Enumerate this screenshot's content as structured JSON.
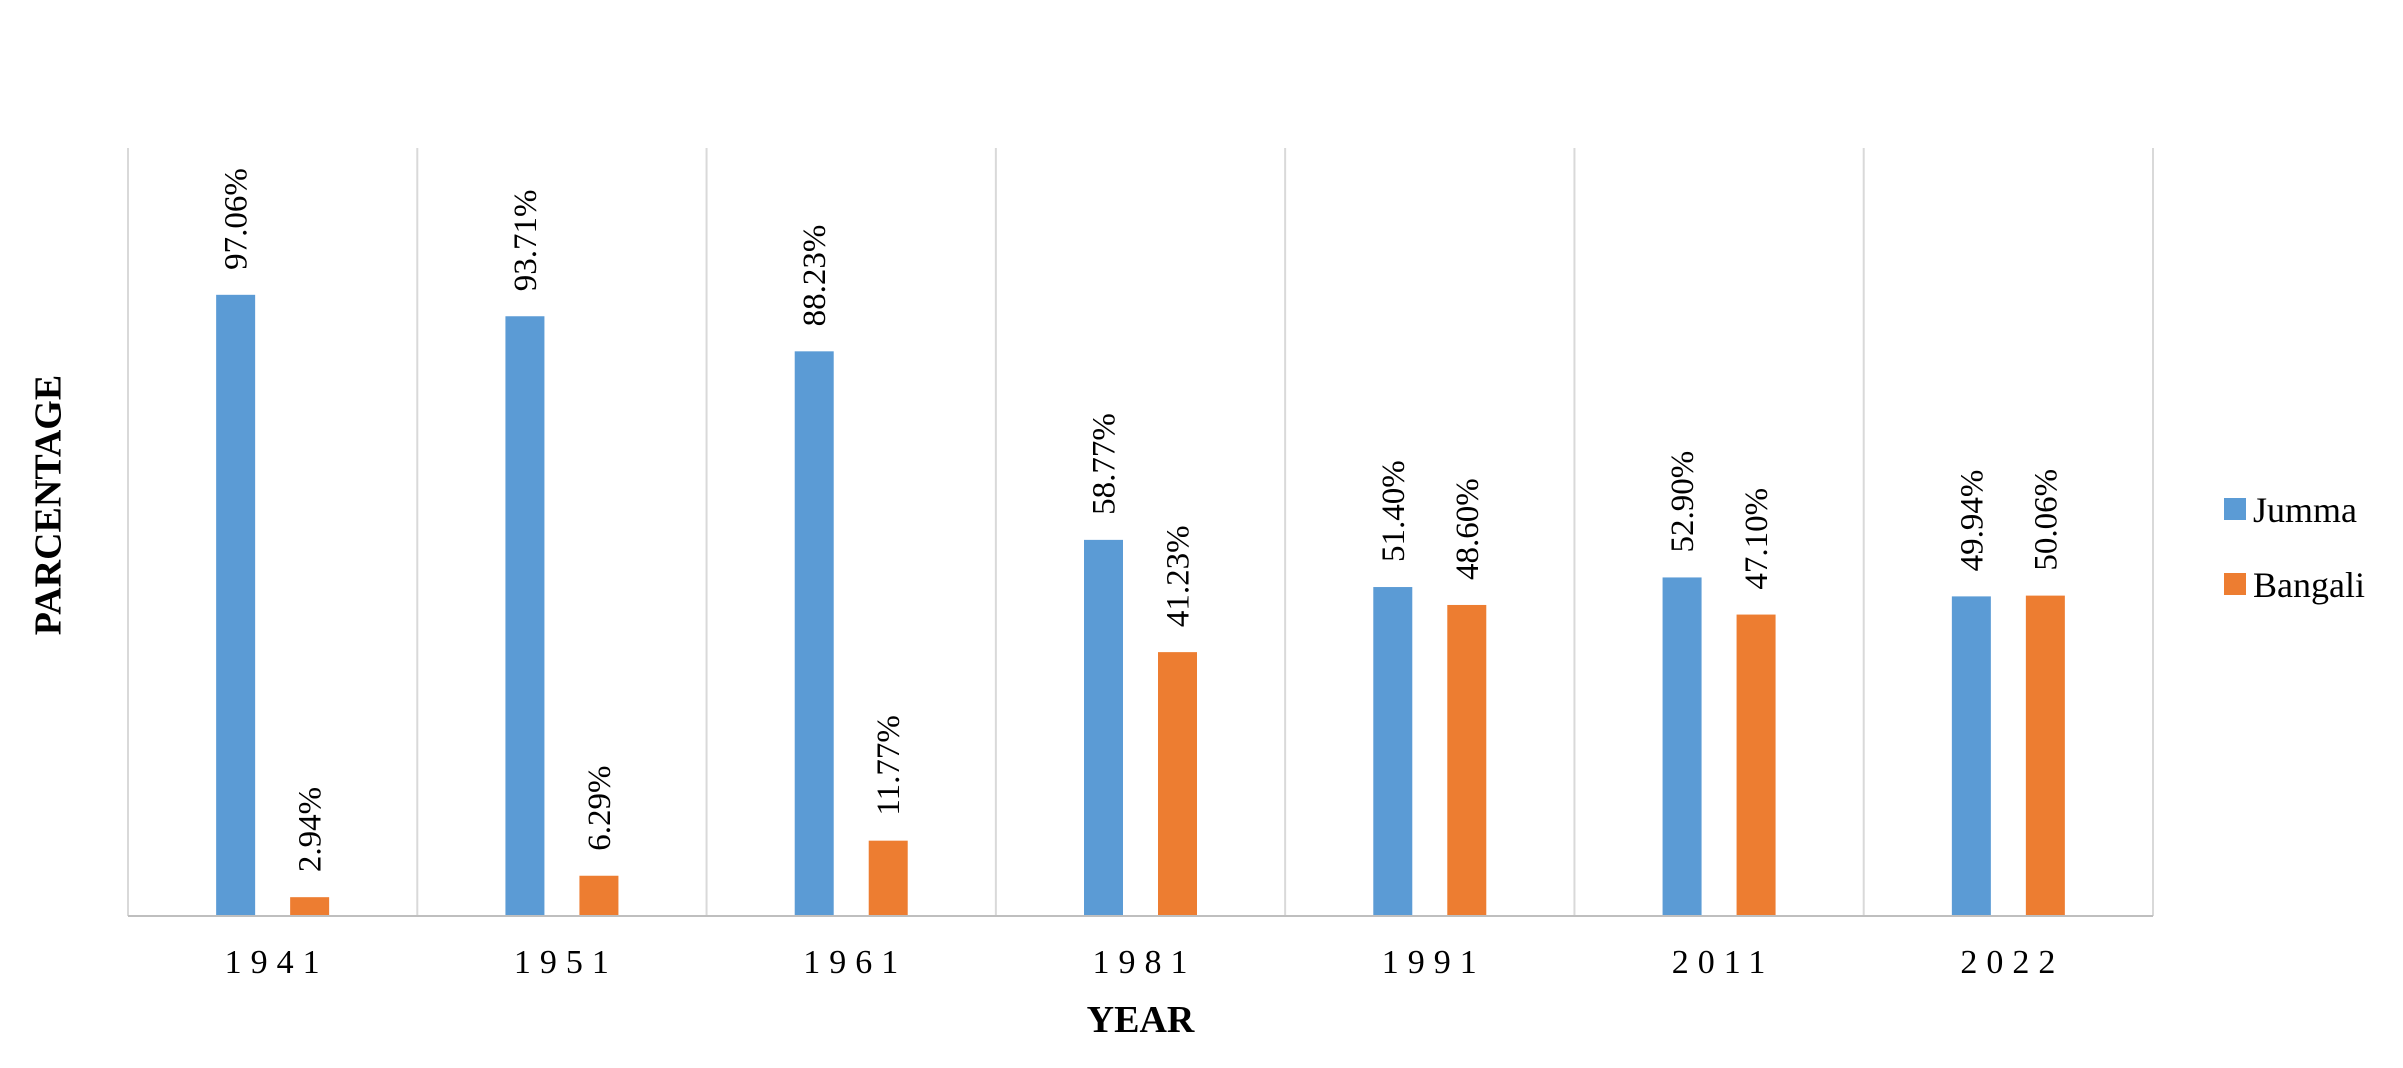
{
  "chart_data": {
    "type": "bar",
    "categories": [
      "1941",
      "1951",
      "1961",
      "1981",
      "1991",
      "2011",
      "2022"
    ],
    "series": [
      {
        "name": "Jumma",
        "color": "#5B9BD5",
        "values": [
          97.06,
          93.71,
          88.23,
          58.77,
          51.4,
          52.9,
          49.94
        ],
        "labels": [
          "97.06%",
          "93.71%",
          "88.23%",
          "58.77%",
          "51.40%",
          "52.90%",
          "49.94%"
        ]
      },
      {
        "name": "Bangali",
        "color": "#ED7D31",
        "values": [
          2.94,
          6.29,
          11.77,
          41.23,
          48.6,
          47.1,
          50.06
        ],
        "labels": [
          "2.94%",
          "6.29%",
          "11.77%",
          "41.23%",
          "48.60%",
          "47.10%",
          "50.06%"
        ]
      }
    ],
    "xlabel": "YEAR",
    "ylabel": "PARCENTAGE",
    "ylim": [
      0,
      120
    ],
    "grid": "vertical category separators",
    "legend_position": "right"
  }
}
